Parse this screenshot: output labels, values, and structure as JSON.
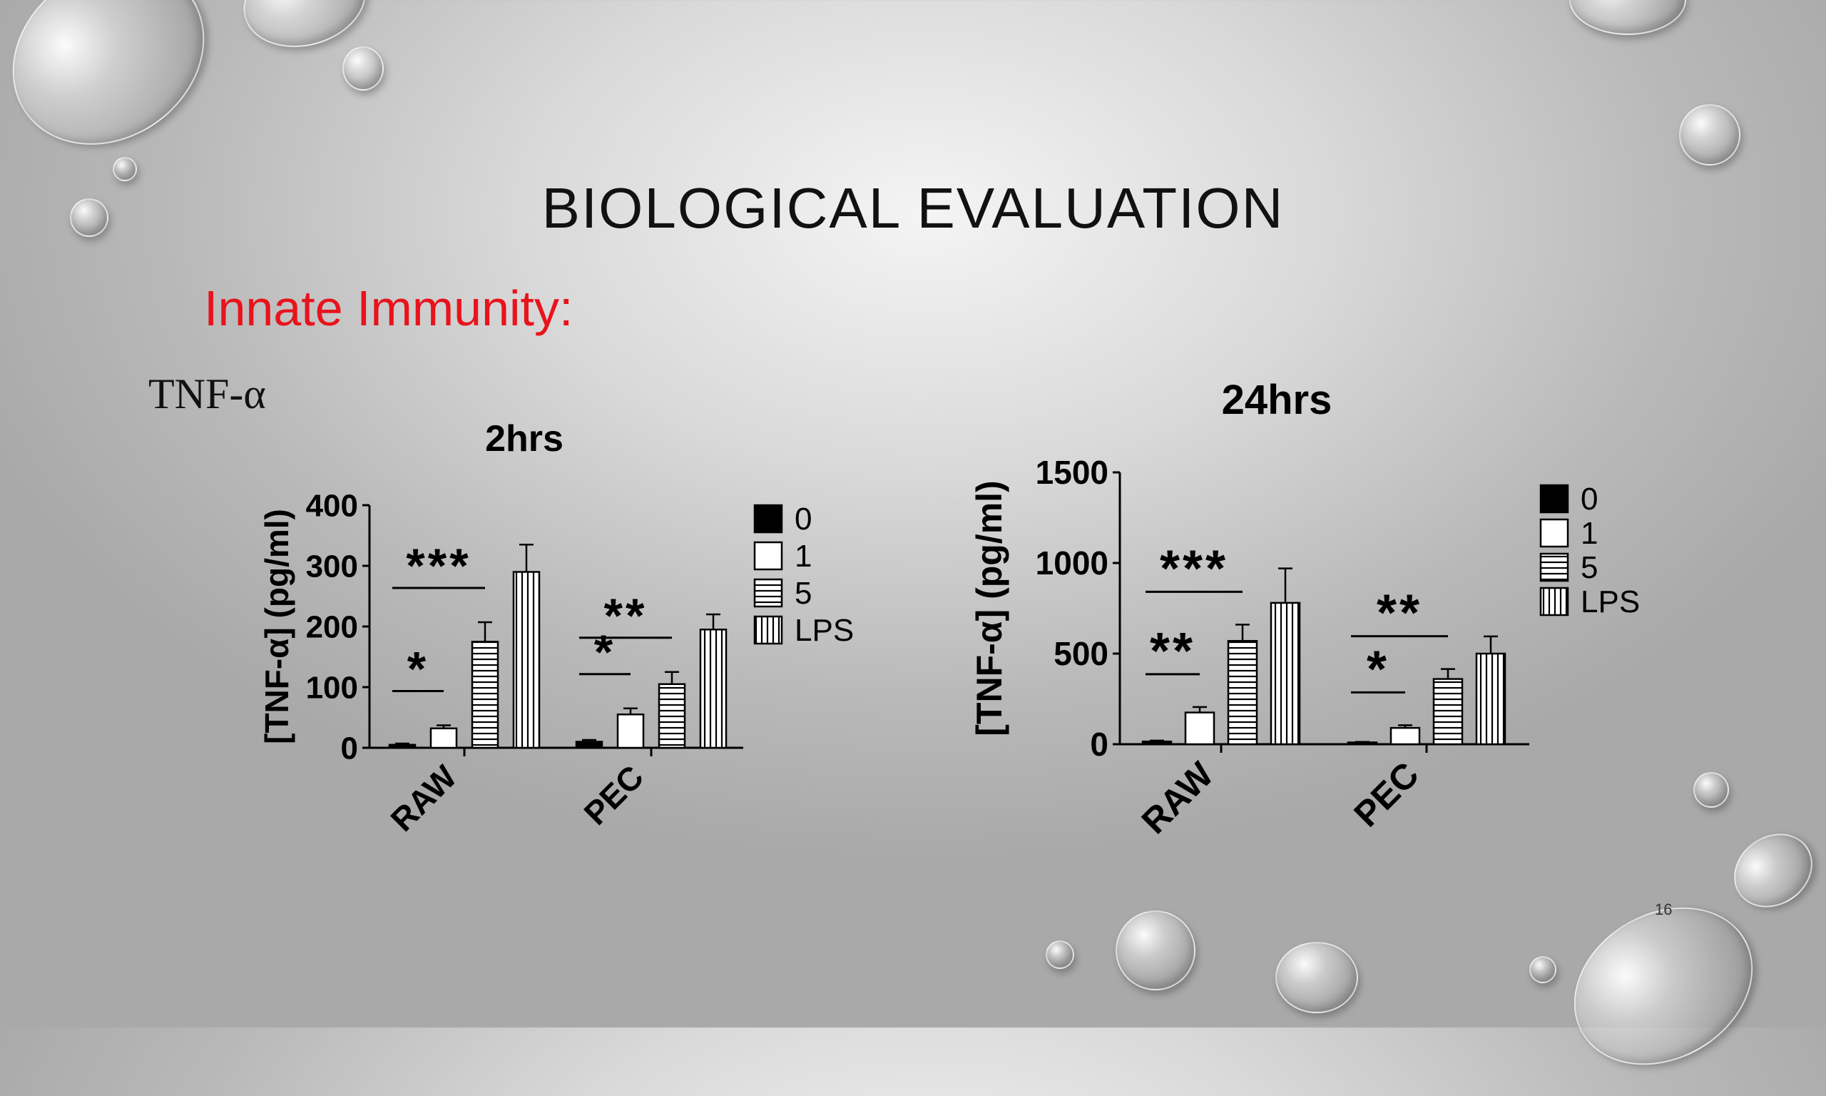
{
  "slide": {
    "title": "BIOLOGICAL EVALUATION",
    "subtitle": "Innate Immunity:",
    "marker_label": "TNF-α",
    "page_number": "16",
    "accent_color": "#e8131c"
  },
  "chart_data": [
    {
      "type": "bar",
      "title": "2hrs",
      "ylabel": "[TNF-α] (pg/ml)",
      "ylim": [
        0,
        400
      ],
      "yticks": [
        "0",
        "100",
        "200",
        "300",
        "400"
      ],
      "categories": [
        "RAW",
        "PEC"
      ],
      "legend_placement": "right",
      "series": [
        {
          "name": "0",
          "pattern": "solid",
          "values": [
            5,
            10
          ],
          "errors": [
            2,
            3
          ]
        },
        {
          "name": "1",
          "pattern": "white",
          "values": [
            32,
            55
          ],
          "errors": [
            5,
            10
          ]
        },
        {
          "name": "5",
          "pattern": "horizontal",
          "values": [
            175,
            105
          ],
          "errors": [
            32,
            20
          ]
        },
        {
          "name": "LPS",
          "pattern": "vertical",
          "values": [
            290,
            195
          ],
          "errors": [
            45,
            25
          ]
        }
      ],
      "annotations": [
        {
          "label": "***",
          "group": 0,
          "from": 0,
          "to": 2
        },
        {
          "label": "*",
          "group": 0,
          "from": 0,
          "to": 1
        },
        {
          "label": "**",
          "group": 1,
          "from": 0,
          "to": 2
        },
        {
          "label": "*",
          "group": 1,
          "from": 0,
          "to": 1
        }
      ]
    },
    {
      "type": "bar",
      "title": "24hrs",
      "ylabel": "[TNF-α] (pg/ml)",
      "ylim": [
        0,
        1500
      ],
      "yticks": [
        "0",
        "500",
        "1000",
        "1500"
      ],
      "categories": [
        "RAW",
        "PEC"
      ],
      "legend_placement": "top-right",
      "series": [
        {
          "name": "0",
          "pattern": "solid",
          "values": [
            15,
            10
          ],
          "errors": [
            5,
            3
          ]
        },
        {
          "name": "1",
          "pattern": "white",
          "values": [
            175,
            90
          ],
          "errors": [
            30,
            15
          ]
        },
        {
          "name": "5",
          "pattern": "horizontal",
          "values": [
            570,
            360
          ],
          "errors": [
            90,
            55
          ]
        },
        {
          "name": "LPS",
          "pattern": "vertical",
          "values": [
            780,
            500
          ],
          "errors": [
            190,
            95
          ]
        }
      ],
      "annotations": [
        {
          "label": "***",
          "group": 0,
          "from": 0,
          "to": 2
        },
        {
          "label": "**",
          "group": 0,
          "from": 0,
          "to": 1
        },
        {
          "label": "**",
          "group": 1,
          "from": 0,
          "to": 2
        },
        {
          "label": "*",
          "group": 1,
          "from": 0,
          "to": 1
        }
      ]
    }
  ]
}
